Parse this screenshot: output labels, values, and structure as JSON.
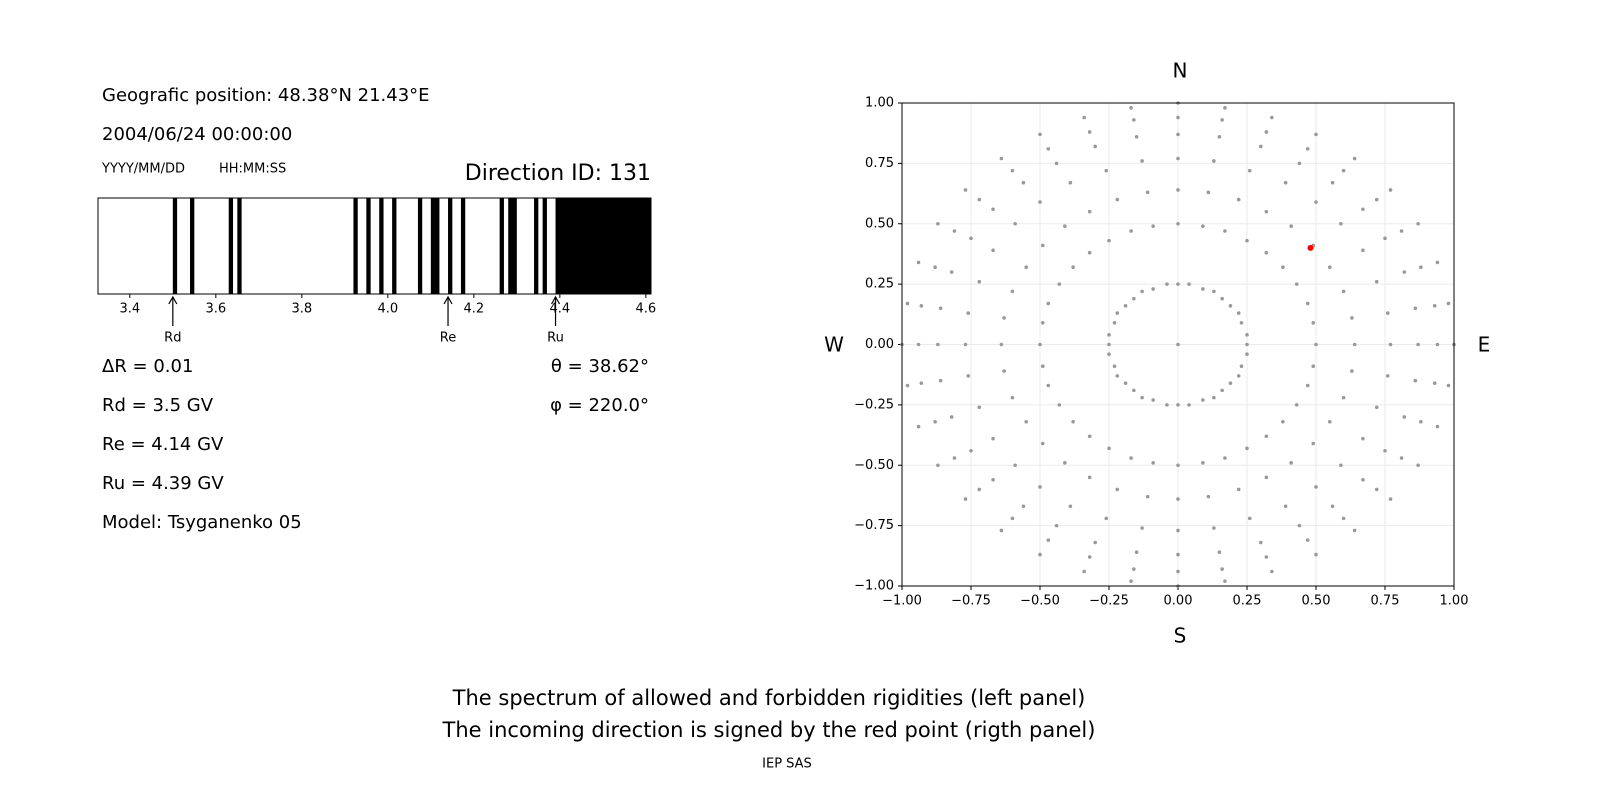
{
  "info": {
    "position": "Geografic position: 48.38°N 21.43°E",
    "datetime": "2004/06/24 00:00:00",
    "date_format": "YYYY/MM/DD",
    "time_format": "HH:MM:SS",
    "direction": "Direction ID: 131",
    "delta": "ΔR = 0.01",
    "theta": "θ = 38.62°",
    "phi": "φ = 220.0°",
    "model": "Model: Tsyganenko 05"
  },
  "caption": [
    "The spectrum of allowed and forbidden rigidities (left panel)",
    "The incoming direction is signed by the red point (rigth panel)"
  ],
  "credit": "IEP SAS",
  "chart_data": [
    {
      "type": "spectrum",
      "color": "#000000",
      "xlim": [
        3.326,
        4.612
      ],
      "xticks": [
        3.4,
        3.6,
        3.8,
        {
          "value": 4,
          "label": "4.0"
        },
        4.2,
        4.4,
        4.6
      ],
      "intervals": [
        [
          3.5,
          3.51
        ],
        [
          3.54,
          3.55
        ],
        [
          3.63,
          3.64
        ],
        [
          3.65,
          3.66
        ],
        [
          3.92,
          3.93
        ],
        [
          3.95,
          3.96
        ],
        [
          3.98,
          3.99
        ],
        [
          4.01,
          4.02
        ],
        [
          4.07,
          4.08
        ],
        [
          4.1,
          4.12
        ],
        [
          4.14,
          4.15
        ],
        [
          4.17,
          4.18
        ],
        [
          4.26,
          4.27
        ],
        [
          4.28,
          4.3
        ],
        [
          4.34,
          4.35
        ],
        [
          4.36,
          4.37
        ],
        [
          4.39,
          4.612
        ]
      ],
      "markers": [
        {
          "label": "Rd",
          "value": 3.5,
          "text": "Rd = 3.5 GV"
        },
        {
          "label": "Re",
          "value": 4.14,
          "text": "Re = 4.14 GV"
        },
        {
          "label": "Ru",
          "value": 4.39,
          "text": "Ru = 4.39 GV"
        }
      ]
    },
    {
      "type": "scatter",
      "xlim": [
        -1,
        1
      ],
      "ylim": [
        -1,
        1
      ],
      "grid": true,
      "directions": {
        "top": "N",
        "bottom": "S",
        "left": "W",
        "right": "E"
      },
      "xticks": [
        {
          "value": -1,
          "label": "−1.00"
        },
        {
          "value": -0.75,
          "label": "−0.75"
        },
        {
          "value": -0.5,
          "label": "−0.50"
        },
        {
          "value": -0.25,
          "label": "−0.25"
        },
        {
          "value": 0,
          "label": "0.00"
        },
        {
          "value": 0.25,
          "label": "0.25"
        },
        {
          "value": 0.5,
          "label": "0.50"
        },
        {
          "value": 0.75,
          "label": "0.75"
        },
        {
          "value": 1,
          "label": "1.00"
        }
      ],
      "yticks": [
        {
          "value": -1,
          "label": "−1.00"
        },
        {
          "value": -0.75,
          "label": "−0.75"
        },
        {
          "value": -0.5,
          "label": "−0.50"
        },
        {
          "value": -0.25,
          "label": "−0.25"
        },
        {
          "value": 0,
          "label": "0.00"
        },
        {
          "value": 0.25,
          "label": "0.25"
        },
        {
          "value": 0.5,
          "label": "0.50"
        },
        {
          "value": 0.75,
          "label": "0.75"
        },
        {
          "value": 1,
          "label": "1.00"
        }
      ],
      "series": [
        {
          "color": "#999999",
          "x": [
            1,
            0.98,
            0.94,
            0.87,
            0.77,
            0.64,
            0.5,
            0.34,
            0.17,
            0,
            -0.17,
            -0.34,
            -0.5,
            -0.64,
            -0.77,
            -0.87,
            -0.94,
            -0.98,
            -1,
            -0.98,
            -0.94,
            -0.87,
            -0.77,
            -0.64,
            -0.5,
            -0.34,
            -0.17,
            0,
            0.17,
            0.34,
            0.5,
            0.64,
            0.77,
            0.87,
            0.94,
            0.98,
            0.94,
            0.93,
            0.88,
            0.81,
            0.72,
            0.6,
            0.47,
            0.32,
            0.16,
            0,
            -0.16,
            -0.32,
            -0.47,
            -0.6,
            -0.72,
            -0.81,
            -0.88,
            -0.93,
            -0.94,
            -0.93,
            -0.88,
            -0.81,
            -0.72,
            -0.6,
            -0.47,
            -0.32,
            -0.16,
            0,
            0.16,
            0.32,
            0.47,
            0.6,
            0.72,
            0.81,
            0.88,
            0.93,
            0.87,
            0.86,
            0.82,
            0.75,
            0.67,
            0.56,
            0.44,
            0.3,
            0.15,
            0,
            -0.15,
            -0.3,
            -0.44,
            -0.56,
            -0.67,
            -0.75,
            -0.82,
            -0.86,
            -0.87,
            -0.86,
            -0.82,
            -0.75,
            -0.67,
            -0.56,
            -0.44,
            -0.3,
            -0.15,
            0,
            0.15,
            0.3,
            0.44,
            0.56,
            0.67,
            0.75,
            0.82,
            0.86,
            0.77,
            0.76,
            0.72,
            0.67,
            0.59,
            0.5,
            0.39,
            0.26,
            0.13,
            0,
            -0.13,
            -0.26,
            -0.39,
            -0.5,
            -0.59,
            -0.67,
            -0.72,
            -0.76,
            -0.77,
            -0.76,
            -0.72,
            -0.67,
            -0.59,
            -0.5,
            -0.39,
            -0.26,
            -0.13,
            0,
            0.13,
            0.26,
            0.39,
            0.5,
            0.59,
            0.67,
            0.72,
            0.76,
            0.64,
            0.63,
            0.6,
            0.55,
            0.49,
            0.41,
            0.32,
            0.22,
            0.11,
            0,
            -0.11,
            -0.22,
            -0.32,
            -0.41,
            -0.49,
            -0.55,
            -0.6,
            -0.63,
            -0.64,
            -0.63,
            -0.6,
            -0.55,
            -0.49,
            -0.41,
            -0.32,
            -0.22,
            -0.11,
            0,
            0.11,
            0.22,
            0.32,
            0.41,
            0.49,
            0.55,
            0.6,
            0.63,
            0.5,
            0.49,
            0.47,
            0.43,
            0.38,
            0.32,
            0.25,
            0.17,
            0.09,
            0,
            -0.09,
            -0.17,
            -0.25,
            -0.32,
            -0.38,
            -0.43,
            -0.47,
            -0.49,
            -0.5,
            -0.49,
            -0.47,
            -0.43,
            -0.38,
            -0.32,
            -0.25,
            -0.17,
            -0.09,
            0,
            0.09,
            0.17,
            0.25,
            0.32,
            0.38,
            0.43,
            0.47,
            0.49,
            0.25,
            0.25,
            0.23,
            0.22,
            0.19,
            0.16,
            0.13,
            0.09,
            0.04,
            0,
            -0.04,
            -0.09,
            -0.13,
            -0.16,
            -0.19,
            -0.22,
            -0.23,
            -0.25,
            -0.25,
            -0.25,
            -0.23,
            -0.22,
            -0.19,
            -0.16,
            -0.13,
            -0.09,
            -0.04,
            0,
            0.04,
            0.09,
            0.13,
            0.16,
            0.19,
            0.22,
            0.23,
            0.25,
            0
          ],
          "y": [
            0,
            0.17,
            0.34,
            0.5,
            0.64,
            0.77,
            0.87,
            0.94,
            0.98,
            1,
            0.98,
            0.94,
            0.87,
            0.77,
            0.64,
            0.5,
            0.34,
            0.17,
            0,
            -0.17,
            -0.34,
            -0.5,
            -0.64,
            -0.77,
            -0.87,
            -0.94,
            -0.98,
            -1,
            -0.98,
            -0.94,
            -0.87,
            -0.77,
            -0.64,
            -0.5,
            -0.34,
            -0.17,
            0,
            0.16,
            0.32,
            0.47,
            0.6,
            0.72,
            0.81,
            0.88,
            0.93,
            0.94,
            0.93,
            0.88,
            0.81,
            0.72,
            0.6,
            0.47,
            0.32,
            0.16,
            0,
            -0.16,
            -0.32,
            -0.47,
            -0.6,
            -0.72,
            -0.81,
            -0.88,
            -0.93,
            -0.94,
            -0.93,
            -0.88,
            -0.81,
            -0.72,
            -0.6,
            -0.47,
            -0.32,
            -0.16,
            0,
            0.15,
            0.3,
            0.44,
            0.56,
            0.67,
            0.75,
            0.82,
            0.86,
            0.87,
            0.86,
            0.82,
            0.75,
            0.67,
            0.56,
            0.44,
            0.3,
            0.15,
            0,
            -0.15,
            -0.3,
            -0.44,
            -0.56,
            -0.67,
            -0.75,
            -0.82,
            -0.86,
            -0.87,
            -0.86,
            -0.82,
            -0.75,
            -0.67,
            -0.56,
            -0.44,
            -0.3,
            -0.15,
            0,
            0.13,
            0.26,
            0.39,
            0.5,
            0.59,
            0.67,
            0.72,
            0.76,
            0.77,
            0.76,
            0.72,
            0.67,
            0.59,
            0.5,
            0.39,
            0.26,
            0.13,
            0,
            -0.13,
            -0.26,
            -0.39,
            -0.5,
            -0.59,
            -0.67,
            -0.72,
            -0.76,
            -0.77,
            -0.76,
            -0.72,
            -0.67,
            -0.59,
            -0.5,
            -0.39,
            -0.26,
            -0.13,
            0,
            0.11,
            0.22,
            0.32,
            0.41,
            0.49,
            0.55,
            0.6,
            0.63,
            0.64,
            0.63,
            0.6,
            0.55,
            0.49,
            0.41,
            0.32,
            0.22,
            0.11,
            0,
            -0.11,
            -0.22,
            -0.32,
            -0.41,
            -0.49,
            -0.55,
            -0.6,
            -0.63,
            -0.64,
            -0.63,
            -0.6,
            -0.55,
            -0.49,
            -0.41,
            -0.32,
            -0.22,
            -0.11,
            0,
            0.09,
            0.17,
            0.25,
            0.32,
            0.38,
            0.43,
            0.47,
            0.49,
            0.5,
            0.49,
            0.47,
            0.43,
            0.38,
            0.32,
            0.25,
            0.17,
            0.09,
            0,
            -0.09,
            -0.17,
            -0.25,
            -0.32,
            -0.38,
            -0.43,
            -0.47,
            -0.49,
            -0.5,
            -0.49,
            -0.47,
            -0.43,
            -0.38,
            -0.32,
            -0.25,
            -0.17,
            -0.09,
            0,
            0.04,
            0.09,
            0.13,
            0.16,
            0.19,
            0.22,
            0.23,
            0.25,
            0.25,
            0.25,
            0.23,
            0.22,
            0.19,
            0.16,
            0.13,
            0.09,
            0.04,
            0,
            -0.04,
            -0.09,
            -0.13,
            -0.16,
            -0.19,
            -0.22,
            -0.23,
            -0.25,
            -0.25,
            -0.25,
            -0.23,
            -0.22,
            -0.19,
            -0.16,
            -0.13,
            -0.09,
            -0.04,
            0
          ]
        },
        {
          "color": "#ff0000",
          "x": [
            0.48
          ],
          "y": [
            0.4
          ]
        }
      ]
    }
  ]
}
